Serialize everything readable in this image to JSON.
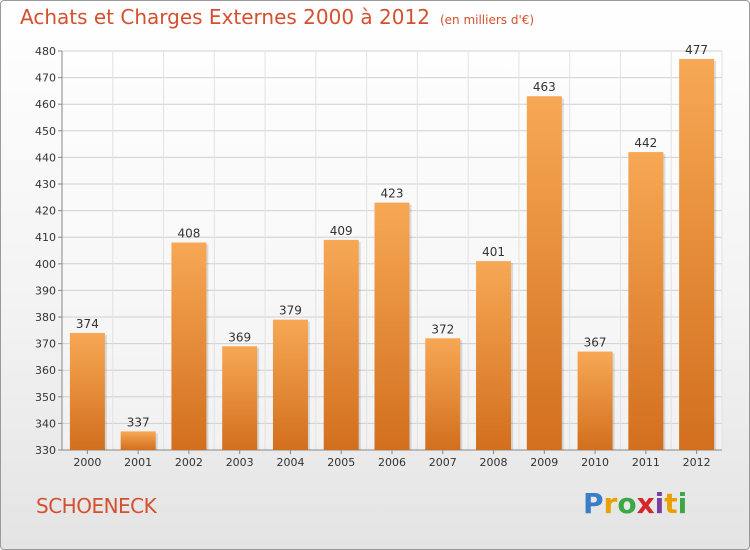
{
  "header": {
    "title": "Achats et Charges Externes 2000 à 2012",
    "unit_note": "(en milliers d'€)"
  },
  "footer": {
    "city": "SCHOENECK",
    "logo_letters": [
      "P",
      "r",
      "o",
      "x",
      "i",
      "t",
      "i"
    ]
  },
  "colors": {
    "bar_light": "#f7a855",
    "bar_dark": "#d26f1e",
    "title": "#d4502f"
  },
  "chart_data": {
    "type": "bar",
    "categories": [
      "2000",
      "2001",
      "2002",
      "2003",
      "2004",
      "2005",
      "2006",
      "2007",
      "2008",
      "2009",
      "2010",
      "2011",
      "2012"
    ],
    "values": [
      374,
      337,
      408,
      369,
      379,
      409,
      423,
      372,
      401,
      463,
      367,
      442,
      477
    ],
    "title": "Achats et Charges Externes 2000 à 2012",
    "xlabel": "",
    "ylabel": "",
    "ylim": [
      330,
      480
    ],
    "yticks": [
      330,
      340,
      350,
      360,
      370,
      380,
      390,
      400,
      410,
      420,
      430,
      440,
      450,
      460,
      470,
      480
    ],
    "grid": true,
    "data_labels": true
  }
}
